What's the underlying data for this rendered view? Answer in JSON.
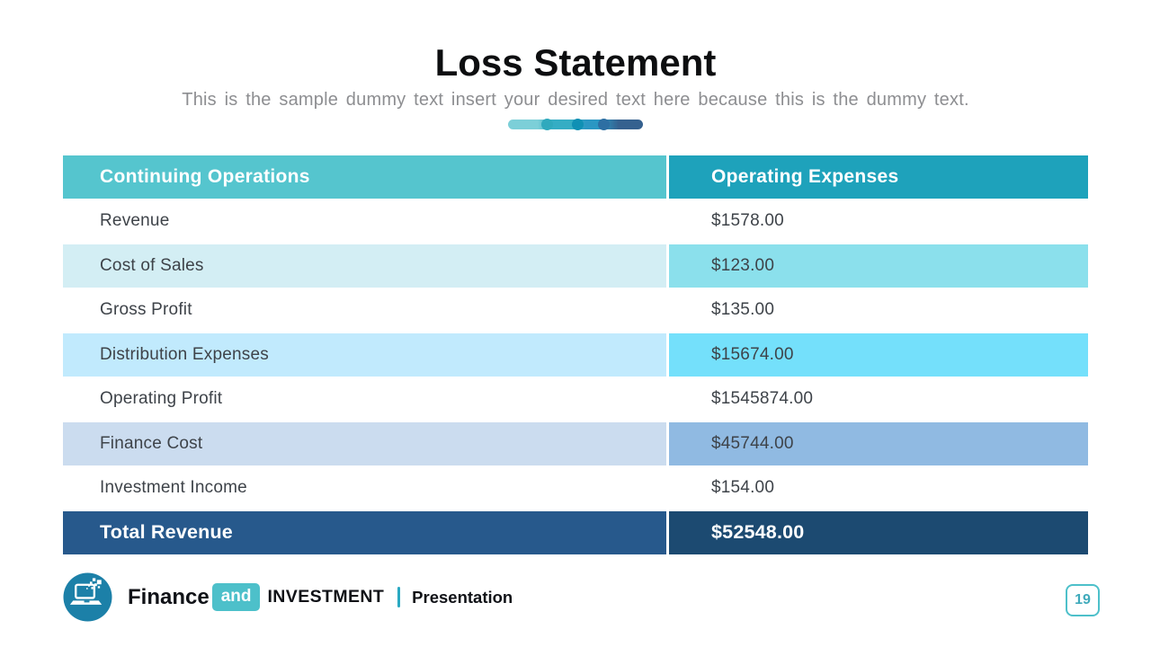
{
  "slide": {
    "title": "Loss Statement",
    "subtitle": "This is the sample  dummy  text insert your desired text here because this is the dummy  text."
  },
  "table": {
    "headers": [
      {
        "label": "Continuing Operations"
      },
      {
        "label": "Operating Expenses"
      }
    ],
    "rows": [
      {
        "label": "Revenue",
        "value": "$1578.00",
        "variant": "plain"
      },
      {
        "label": "Cost of Sales",
        "value": "$123.00",
        "variant": "cyan"
      },
      {
        "label": "Gross Profit",
        "value": "$135.00",
        "variant": "plain"
      },
      {
        "label": "Distribution  Expenses",
        "value": "$15674.00",
        "variant": "sky"
      },
      {
        "label": "Operating Profit",
        "value": "$1545874.00",
        "variant": "plain"
      },
      {
        "label": "Finance  Cost",
        "value": "$45744.00",
        "variant": "steel"
      },
      {
        "label": "Investment  Income",
        "value": "$154.00",
        "variant": "plain"
      },
      {
        "label": "Total Revenue",
        "value": "$52548.00",
        "variant": "total"
      }
    ]
  },
  "footer": {
    "brand_bold": "Finance",
    "brand_badge": "and",
    "brand_caps": "INVESTMENT",
    "label": "Presentation",
    "page_number": "19",
    "logo_icon": "laptop-pixels-icon"
  },
  "colors": {
    "header_left_bg": "#55C5CE",
    "header_right_bg": "#1EA2BB",
    "row_cyan_left": "#D3EEF4",
    "row_cyan_right": "#8BE0EC",
    "row_sky_left": "#C1EAFD",
    "row_sky_right": "#74E0FB",
    "row_steel_left": "#CBDCEF",
    "row_steel_right": "#90BAE2",
    "total_left_bg": "#27598C",
    "total_right_bg": "#1C4A71",
    "row_text": "#3E4349",
    "subtitle_text": "#8D8E91",
    "accent_teal": "#4DC0CA",
    "logo_circle": "#1C80A8",
    "page_badge": "#3FAABB",
    "footer_divider": "#2AA9C2",
    "accent_seg1": "#7CCFD8",
    "accent_seg2": "#35ADC4",
    "accent_seg3": "#2B97C3",
    "accent_seg4": "#35618F"
  }
}
